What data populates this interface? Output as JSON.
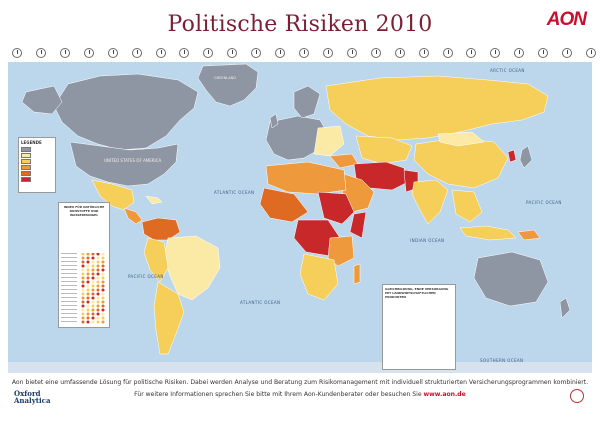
{
  "header": {
    "title": "Politische Risiken 2010",
    "logo_text": "AON"
  },
  "clocks": {
    "count": 25
  },
  "map": {
    "ocean_labels": [
      {
        "key": "arctic",
        "text": "ARCTIC OCEAN"
      },
      {
        "key": "atlantic_n",
        "text": "ATLANTIC OCEAN"
      },
      {
        "key": "atlantic_s",
        "text": "ATLANTIC OCEAN"
      },
      {
        "key": "pacific_w",
        "text": "PACIFIC OCEAN"
      },
      {
        "key": "pacific_e",
        "text": "PACIFIC OCEAN"
      },
      {
        "key": "indian",
        "text": "INDIAN OCEAN"
      },
      {
        "key": "southern",
        "text": "SOUTHERN OCEAN"
      }
    ],
    "country_labels": {
      "greenland": "GREENLAND",
      "usa": "UNITED STATES OF AMERICA"
    },
    "colors": {
      "ocean": "#bcd6ec",
      "grey": "#8e96a3",
      "pale": "#fbeaa6",
      "yellow": "#f5cf5a",
      "orange": "#ee9a3c",
      "darkorange": "#df6a22",
      "red": "#c9282a",
      "brand": "#7b1e34",
      "aon_red": "#c8102e"
    }
  },
  "legend": {
    "title": "LEGENDE"
  },
  "index_panel": {
    "title": "INDEX FÜR NATÜRLICHE ROHSTOFFE UND WASSERMANGEL"
  },
  "info_panel": {
    "title": "GLEICHBILDUNG, ENDE VERSORGUNG MIT LANDWIRTSCHAFTLICHEN PRODUKTEN"
  },
  "footer": {
    "line1": "Aon bietet eine umfassende Lösung für politische Risiken. Dabei werden Analyse und Beratung zum Risikomanagement mit individuell strukturierten Versicherungsprogrammen kombiniert.",
    "line2_prefix": "Für weitere Informationen sprechen Sie bitte mit Ihrem Aon-Kundenberater oder besuchen Sie",
    "url": "www.aon.de",
    "oxford_line1": "Oxford",
    "oxford_line2": "Analytica"
  }
}
